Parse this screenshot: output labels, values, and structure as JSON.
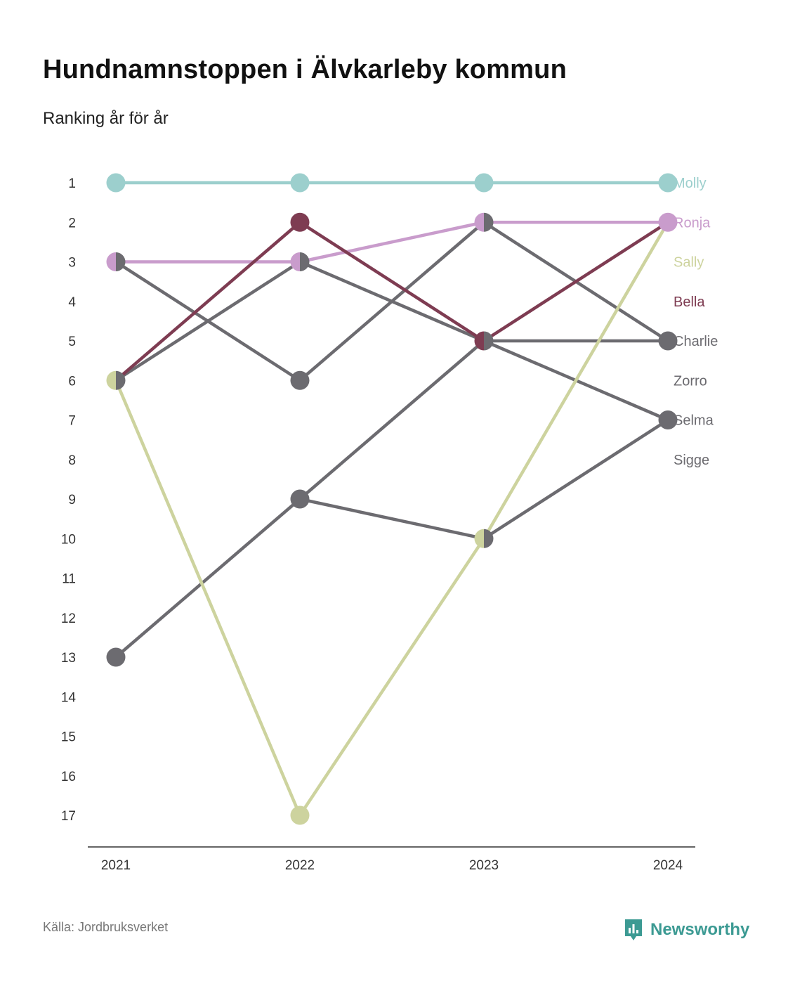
{
  "title": "Hundnamnstoppen i Älvkarleby kommun",
  "subtitle": "Ranking år för år",
  "source": "Källa: Jordbruksverket",
  "brand": {
    "name": "Newsworthy",
    "icon": "newsworthy-logo-icon",
    "color": "#3c9a93"
  },
  "chart_data": {
    "type": "line",
    "x": [
      "2021",
      "2022",
      "2023",
      "2024"
    ],
    "y_ticks": [
      "1",
      "2",
      "3",
      "4",
      "5",
      "6",
      "7",
      "8",
      "9",
      "10",
      "11",
      "12",
      "13",
      "14",
      "15",
      "16",
      "17"
    ],
    "ylim": [
      1,
      17
    ],
    "y_reversed": true,
    "grid": false,
    "legend": "right (labels at line ends)",
    "series": [
      {
        "name": "Molly",
        "values": [
          1,
          1,
          1,
          1
        ],
        "color": "#9ccfcd"
      },
      {
        "name": "Ronja",
        "values": [
          3,
          3,
          2,
          2
        ],
        "color": "#c99ccc"
      },
      {
        "name": "Sally",
        "values": [
          6,
          17,
          10,
          2
        ],
        "color": "#cdd39e"
      },
      {
        "name": "Bella",
        "values": [
          6,
          2,
          5,
          2
        ],
        "color": "#7e3c52"
      },
      {
        "name": "Charlie",
        "values": [
          6,
          3,
          5,
          5
        ],
        "color": "#6c6b70"
      },
      {
        "name": "Zorro",
        "values": [
          3,
          6,
          2,
          5
        ],
        "color": "#6c6b70"
      },
      {
        "name": "Selma",
        "values": [
          13,
          9,
          5,
          7
        ],
        "color": "#6c6b70"
      },
      {
        "name": "Sigge",
        "values": [
          null,
          9,
          10,
          7
        ],
        "color": "#6c6b70"
      }
    ]
  }
}
